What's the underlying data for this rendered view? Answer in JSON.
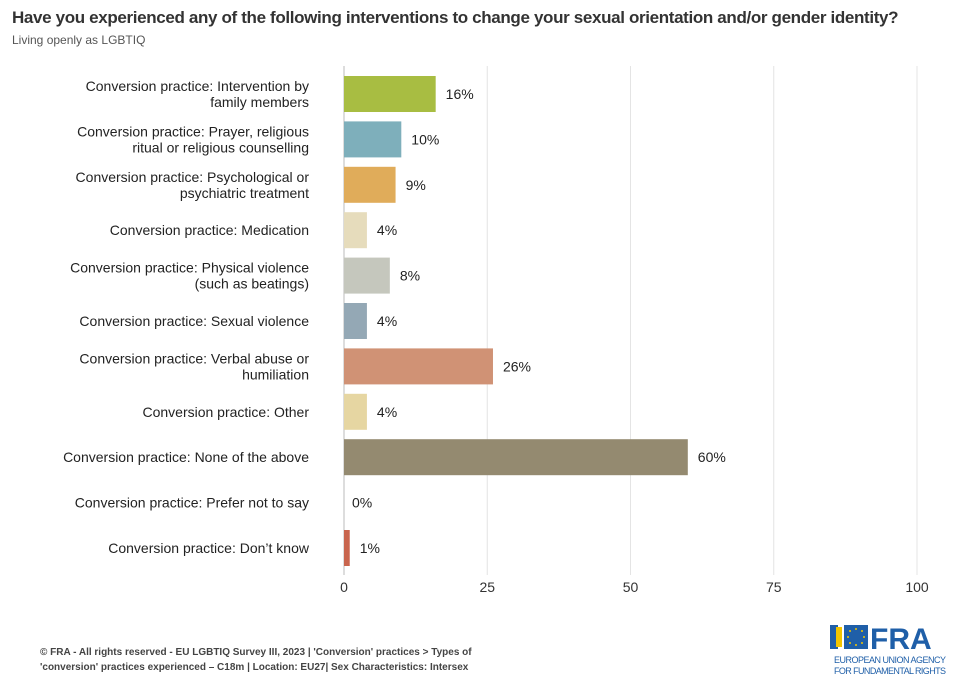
{
  "title": "Have you experienced any of the following interventions to change your sexual orientation and/or gender identity?",
  "subtitle": "Living openly as LGBTIQ",
  "chart_data": {
    "type": "bar",
    "orientation": "horizontal",
    "categories": [
      [
        "Conversion practice: Intervention by",
        "family members"
      ],
      [
        "Conversion practice: Prayer, religious",
        "ritual or religious counselling"
      ],
      [
        "Conversion practice: Psychological or",
        "psychiatric treatment"
      ],
      [
        "Conversion practice: Medication"
      ],
      [
        "Conversion practice: Physical violence",
        "(such as beatings)"
      ],
      [
        "Conversion practice: Sexual violence"
      ],
      [
        "Conversion practice: Verbal abuse or",
        "humiliation"
      ],
      [
        "Conversion practice: Other"
      ],
      [
        "Conversion practice: None of the above"
      ],
      [
        "Conversion practice: Prefer not to say"
      ],
      [
        "Conversion practice: Don’t know"
      ]
    ],
    "values": [
      16,
      10,
      9,
      4,
      8,
      4,
      26,
      4,
      60,
      0,
      1
    ],
    "data_labels": [
      "16%",
      "10%",
      "9%",
      "4%",
      "8%",
      "4%",
      "26%",
      "4%",
      "60%",
      "0%",
      "1%"
    ],
    "colors": [
      "#a8bd42",
      "#7eafbb",
      "#e0ac5a",
      "#e6dcbc",
      "#c5c7bd",
      "#94a8b5",
      "#d09275",
      "#e6d6a2",
      "#948a70",
      "#cccccc",
      "#c9654e"
    ],
    "xlim": [
      0,
      100
    ],
    "xticks": [
      0,
      25,
      50,
      75,
      100
    ],
    "grid": true
  },
  "footer": {
    "line1": "© FRA - All rights reserved - EU LGBTIQ Survey III, 2023 | 'Conversion' practices > Types of",
    "line2": "'conversion' practices experienced – C18m | Location: EU27| Sex Characteristics: Intersex"
  },
  "logo": {
    "text": "FRA",
    "line1": "EUROPEAN UNION AGENCY",
    "line2": "FOR FUNDAMENTAL RIGHTS",
    "color": "#1f5fa8"
  }
}
